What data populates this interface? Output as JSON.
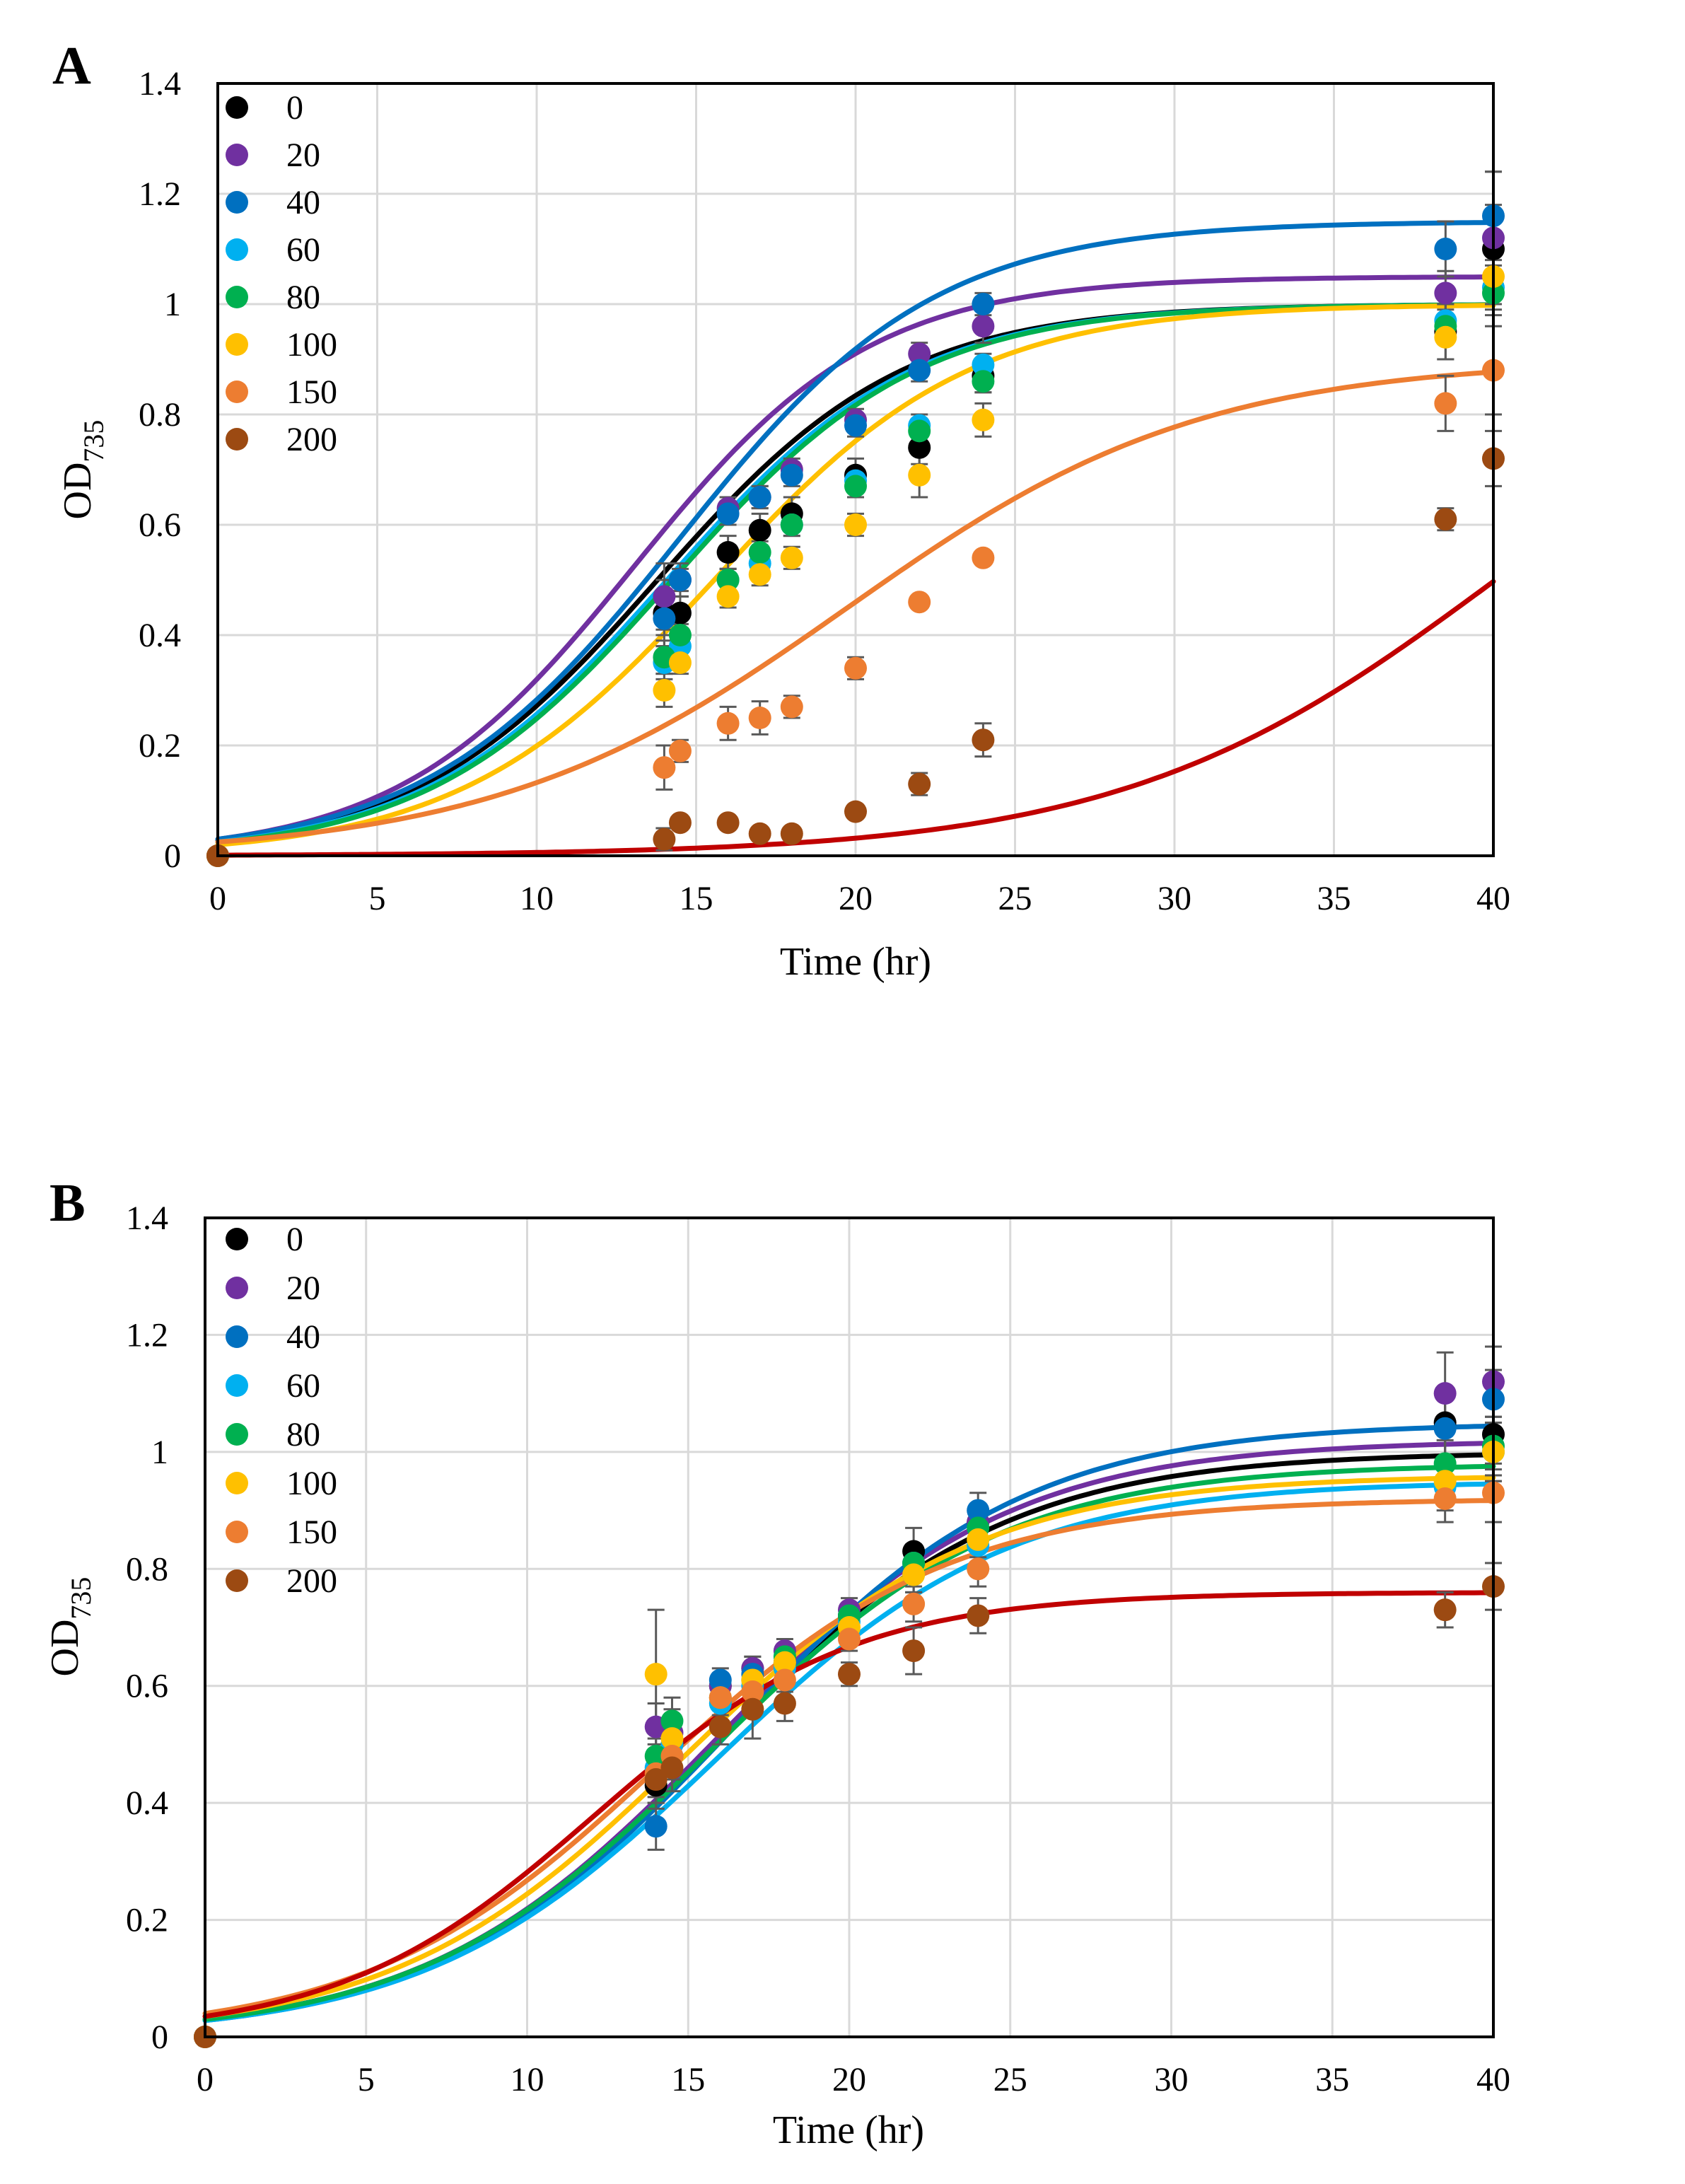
{
  "chart_data": [
    {
      "type": "scatter",
      "panel": "A",
      "xlabel": "Time (hr)",
      "ylabel_main": "OD",
      "ylabel_sub": "735",
      "xlim": [
        0,
        40
      ],
      "ylim": [
        0,
        1.4
      ],
      "xticks": [
        0,
        5,
        10,
        15,
        20,
        25,
        30,
        35,
        40
      ],
      "yticks": [
        0,
        0.2,
        0.4,
        0.6,
        0.8,
        1,
        1.2,
        1.4
      ],
      "x": [
        0,
        14,
        14.5,
        16,
        17,
        18,
        20,
        22,
        24,
        38.5,
        40
      ],
      "series": [
        {
          "name": "0",
          "color": "#000000",
          "fit_color": "#000000",
          "fit": {
            "K": 1.0,
            "r": 0.26,
            "x0": 0.027
          },
          "values": [
            0,
            0.44,
            0.44,
            0.55,
            0.59,
            0.62,
            0.69,
            0.74,
            0.87,
            0.95,
            1.1
          ],
          "err": [
            0,
            0.06,
            0.03,
            0.03,
            0.03,
            0.03,
            0.03,
            0.03,
            0.03,
            0.05,
            0.08
          ]
        },
        {
          "name": "20",
          "color": "#7030a0",
          "fit_color": "#7030a0",
          "fit": {
            "K": 1.05,
            "r": 0.27,
            "x0": 0.03
          },
          "values": [
            0,
            0.47,
            0.5,
            0.63,
            0.65,
            0.7,
            0.79,
            0.91,
            0.96,
            1.02,
            1.12
          ],
          "err": [
            0,
            0.06,
            0.03,
            0.02,
            0.02,
            0.02,
            0.02,
            0.02,
            0.03,
            0.04,
            0.12
          ]
        },
        {
          "name": "40",
          "color": "#0070c0",
          "fit_color": "#0070c0",
          "fit": {
            "K": 1.15,
            "r": 0.25,
            "x0": 0.03
          },
          "values": [
            0,
            0.43,
            0.5,
            0.62,
            0.65,
            0.69,
            0.78,
            0.88,
            1.0,
            1.1,
            1.16
          ],
          "err": [
            0,
            0.03,
            0.02,
            0.02,
            0.02,
            0.02,
            0.02,
            0.02,
            0.02,
            0.05,
            0.08
          ]
        },
        {
          "name": "60",
          "color": "#00b0f0",
          "fit_color": "#00b0f0",
          "fit": {
            "K": 1.0,
            "r": 0.26,
            "x0": 0.025
          },
          "values": [
            0,
            0.35,
            0.38,
            0.5,
            0.53,
            0.6,
            0.68,
            0.78,
            0.89,
            0.97,
            1.03
          ],
          "err": [
            0,
            0.03,
            0.02,
            0.02,
            0.02,
            0.02,
            0.02,
            0.02,
            0.02,
            0.03,
            0.04
          ]
        },
        {
          "name": "80",
          "color": "#00b050",
          "fit_color": "#00b050",
          "fit": {
            "K": 1.0,
            "r": 0.26,
            "x0": 0.024
          },
          "values": [
            0,
            0.36,
            0.4,
            0.5,
            0.55,
            0.6,
            0.67,
            0.77,
            0.86,
            0.96,
            1.02
          ],
          "err": [
            0,
            0.03,
            0.02,
            0.02,
            0.02,
            0.02,
            0.02,
            0.02,
            0.02,
            0.03,
            0.04
          ]
        },
        {
          "name": "100",
          "color": "#ffc000",
          "fit_color": "#ffc000",
          "fit": {
            "K": 1.0,
            "r": 0.25,
            "x0": 0.02
          },
          "values": [
            0,
            0.3,
            0.35,
            0.47,
            0.51,
            0.54,
            0.6,
            0.69,
            0.79,
            0.94,
            1.05
          ],
          "err": [
            0,
            0.03,
            0.02,
            0.02,
            0.02,
            0.02,
            0.02,
            0.04,
            0.03,
            0.04,
            0.05
          ]
        },
        {
          "name": "150",
          "color": "#ed7d31",
          "fit_color": "#ed7d31",
          "fit": {
            "K": 0.9,
            "r": 0.18,
            "x0": 0.025
          },
          "values": [
            0,
            0.16,
            0.19,
            0.24,
            0.25,
            0.27,
            0.34,
            0.46,
            0.54,
            0.82,
            0.88
          ],
          "err": [
            0,
            0.04,
            0.02,
            0.03,
            0.03,
            0.02,
            0.02,
            0.01,
            0.01,
            0.05,
            0.08
          ]
        },
        {
          "name": "200",
          "color": "#9c4a12",
          "fit_color": "#c00000",
          "fit": {
            "K": 1.0,
            "r": 0.17,
            "x0": 0.0011
          },
          "values": [
            0,
            0.03,
            0.06,
            0.06,
            0.04,
            0.04,
            0.08,
            0.13,
            0.21,
            0.61,
            0.72
          ],
          "err": [
            0,
            0.02,
            0.01,
            0.01,
            0.01,
            0.01,
            0.01,
            0.02,
            0.03,
            0.02,
            0.05
          ]
        }
      ],
      "legend": "top-left"
    },
    {
      "type": "scatter",
      "panel": "B",
      "xlabel": "Time (hr)",
      "ylabel_main": "OD",
      "ylabel_sub": "735",
      "xlim": [
        0,
        40
      ],
      "ylim": [
        0,
        1.4
      ],
      "xticks": [
        0,
        5,
        10,
        15,
        20,
        25,
        30,
        35,
        40
      ],
      "yticks": [
        0,
        0.2,
        0.4,
        0.6,
        0.8,
        1,
        1.2,
        1.4
      ],
      "x": [
        0,
        14,
        14.5,
        16,
        17,
        18,
        20,
        22,
        24,
        38.5,
        40
      ],
      "series": [
        {
          "name": "0",
          "color": "#000000",
          "fit_color": "#000000",
          "fit": {
            "K": 1.0,
            "r": 0.22,
            "x0": 0.03
          },
          "values": [
            0,
            0.43,
            0.5,
            0.6,
            0.63,
            0.64,
            0.72,
            0.83,
            0.88,
            1.05,
            1.03
          ],
          "err": [
            0,
            0.04,
            0.04,
            0.02,
            0.02,
            0.02,
            0.02,
            0.04,
            0.03,
            0.06,
            0.06
          ]
        },
        {
          "name": "20",
          "color": "#7030a0",
          "fit_color": "#7030a0",
          "fit": {
            "K": 1.02,
            "r": 0.22,
            "x0": 0.03
          },
          "values": [
            0,
            0.53,
            0.52,
            0.6,
            0.63,
            0.66,
            0.73,
            0.81,
            0.88,
            1.1,
            1.12
          ],
          "err": [
            0,
            0.04,
            0.04,
            0.02,
            0.02,
            0.02,
            0.02,
            0.03,
            0.03,
            0.07,
            0.06
          ]
        },
        {
          "name": "40",
          "color": "#0070c0",
          "fit_color": "#0070c0",
          "fit": {
            "K": 1.05,
            "r": 0.22,
            "x0": 0.028
          },
          "values": [
            0,
            0.36,
            0.48,
            0.61,
            0.62,
            0.64,
            0.72,
            0.81,
            0.9,
            1.04,
            1.09
          ],
          "err": [
            0,
            0.04,
            0.04,
            0.02,
            0.02,
            0.02,
            0.02,
            0.03,
            0.03,
            0.05,
            0.05
          ]
        },
        {
          "name": "60",
          "color": "#00b0f0",
          "fit_color": "#00b0f0",
          "fit": {
            "K": 0.95,
            "r": 0.22,
            "x0": 0.028
          },
          "values": [
            0,
            0.46,
            0.5,
            0.57,
            0.6,
            0.63,
            0.71,
            0.79,
            0.84,
            0.94,
            1.0
          ],
          "err": [
            0,
            0.04,
            0.04,
            0.02,
            0.02,
            0.02,
            0.02,
            0.03,
            0.03,
            0.04,
            0.05
          ]
        },
        {
          "name": "80",
          "color": "#00b050",
          "fit_color": "#00b050",
          "fit": {
            "K": 0.98,
            "r": 0.22,
            "x0": 0.03
          },
          "values": [
            0,
            0.48,
            0.54,
            0.58,
            0.61,
            0.65,
            0.72,
            0.81,
            0.87,
            0.98,
            1.01
          ],
          "err": [
            0,
            0.04,
            0.04,
            0.02,
            0.02,
            0.02,
            0.02,
            0.03,
            0.03,
            0.04,
            0.05
          ]
        },
        {
          "name": "100",
          "color": "#ffc000",
          "fit_color": "#ffc000",
          "fit": {
            "K": 0.96,
            "r": 0.22,
            "x0": 0.035
          },
          "values": [
            0,
            0.62,
            0.51,
            0.58,
            0.61,
            0.64,
            0.7,
            0.79,
            0.85,
            0.95,
            1.0
          ],
          "err": [
            0,
            0.11,
            0.04,
            0.02,
            0.02,
            0.02,
            0.02,
            0.03,
            0.03,
            0.04,
            0.05
          ]
        },
        {
          "name": "150",
          "color": "#ed7d31",
          "fit_color": "#ed7d31",
          "fit": {
            "K": 0.92,
            "r": 0.22,
            "x0": 0.04
          },
          "values": [
            0,
            0.45,
            0.48,
            0.58,
            0.59,
            0.61,
            0.68,
            0.74,
            0.8,
            0.92,
            0.93
          ],
          "err": [
            0,
            0.04,
            0.04,
            0.02,
            0.02,
            0.02,
            0.02,
            0.03,
            0.03,
            0.04,
            0.05
          ]
        },
        {
          "name": "200",
          "color": "#9c4a12",
          "fit_color": "#c00000",
          "fit": {
            "K": 0.76,
            "r": 0.25,
            "x0": 0.035
          },
          "values": [
            0,
            0.44,
            0.46,
            0.53,
            0.56,
            0.57,
            0.62,
            0.66,
            0.72,
            0.73,
            0.77
          ],
          "err": [
            0,
            0.04,
            0.04,
            0.03,
            0.05,
            0.03,
            0.02,
            0.04,
            0.03,
            0.03,
            0.04
          ]
        }
      ],
      "legend": "top-left"
    }
  ]
}
